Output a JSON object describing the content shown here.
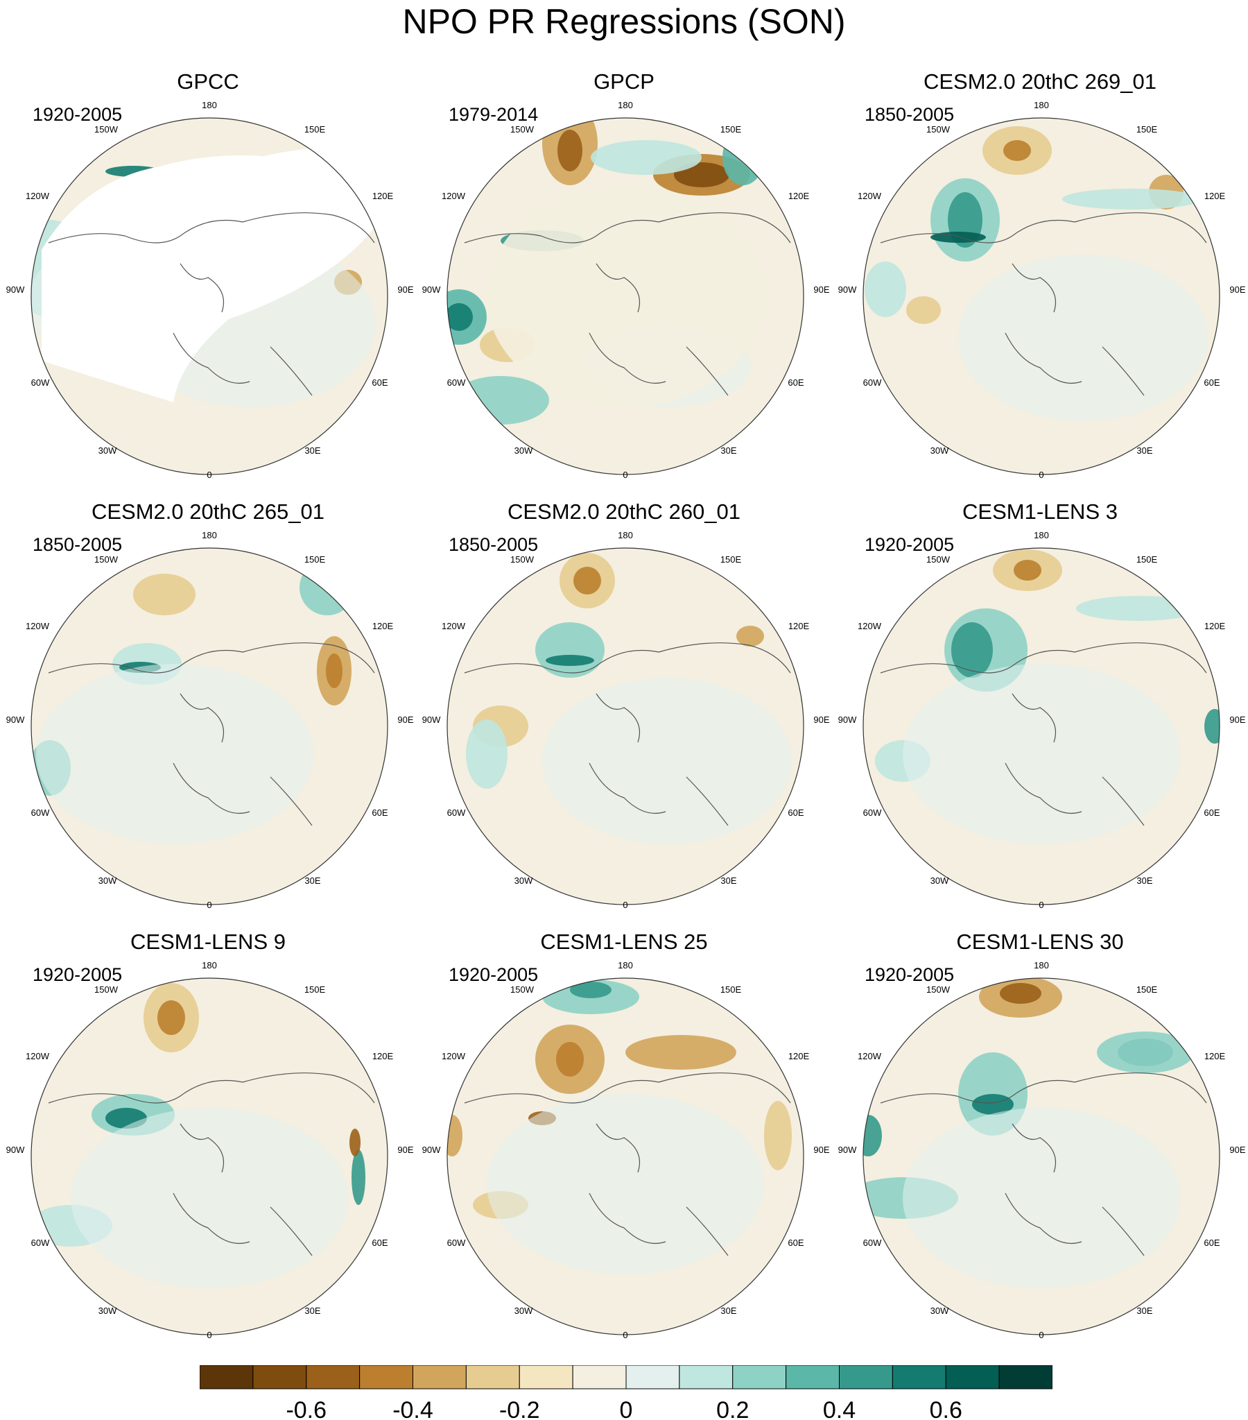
{
  "title": "NPO PR Regressions (SON)",
  "map_labels": {
    "lon_top": "180",
    "lon_bottom": "0",
    "lon_150w": "150W",
    "lon_150e": "150E",
    "lon_120w": "120W",
    "lon_120e": "120E",
    "lon_90w": "90W",
    "lon_90e": "90E",
    "lon_60w": "60W",
    "lon_60e": "60E",
    "lon_30w": "30W",
    "lon_30e": "30E"
  },
  "panels": [
    {
      "title": "GPCC",
      "period": "1920-2005",
      "masked_land_missing": true
    },
    {
      "title": "GPCP",
      "period": "1979-2014"
    },
    {
      "title": "CESM2.0 20thC 269_01",
      "period": "1850-2005"
    },
    {
      "title": "CESM2.0 20thC 265_01",
      "period": "1850-2005"
    },
    {
      "title": "CESM2.0 20thC 260_01",
      "period": "1850-2005"
    },
    {
      "title": "CESM1-LENS 3",
      "period": "1920-2005"
    },
    {
      "title": "CESM1-LENS 9",
      "period": "1920-2005"
    },
    {
      "title": "CESM1-LENS 25",
      "period": "1920-2005"
    },
    {
      "title": "CESM1-LENS 30",
      "period": "1920-2005"
    }
  ],
  "colorbar": {
    "colors": [
      "#5c3509",
      "#7f4c0f",
      "#9b6019",
      "#bb7f2f",
      "#d2a55c",
      "#e7cc91",
      "#f5e6c2",
      "#f4efe0",
      "#e3f0ee",
      "#bfe6df",
      "#8ed2c5",
      "#5bb7a8",
      "#359a8c",
      "#137b70",
      "#035e54",
      "#013d34"
    ],
    "tick_labels": [
      "-0.6",
      "-0.4",
      "-0.2",
      "0",
      "0.2",
      "0.4",
      "0.6"
    ],
    "tick_values": [
      -0.6,
      -0.4,
      -0.2,
      0,
      0.2,
      0.4,
      0.6
    ],
    "range": [
      -0.8,
      0.8
    ]
  }
}
